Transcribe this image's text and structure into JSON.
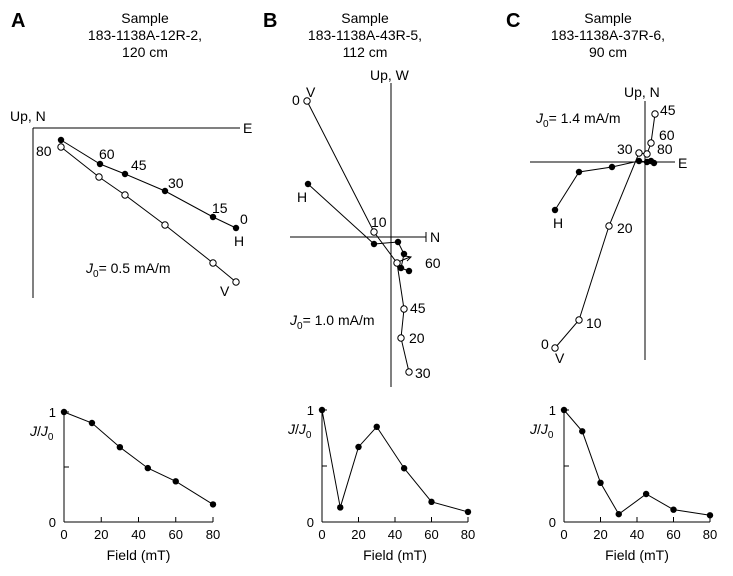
{
  "colors": {
    "ink": "#000000",
    "background": "#ffffff"
  },
  "panels": [
    {
      "letter": "A",
      "title_lines": [
        "Sample",
        "183-1138A-12R-2,",
        "120 cm"
      ],
      "zijderveld": {
        "axis_vertical_label": "Up, N",
        "axis_horizontal_label": "E",
        "intensity_label": "= 0.5 mA/m",
        "intensity_symbol": "J",
        "intensity_subscript": "0",
        "step_labels": [
          "80",
          "60",
          "45",
          "30",
          "15",
          "0"
        ],
        "horizontal_series_label": "H",
        "vertical_series_label": "V"
      }
    },
    {
      "letter": "B",
      "title_lines": [
        "Sample",
        "183-1138A-43R-5,",
        "112 cm"
      ],
      "zijderveld": {
        "axis_vertical_label": "Up, W",
        "axis_horizontal_label": "N",
        "intensity_label": "= 1.0 mA/m",
        "intensity_symbol": "J",
        "intensity_subscript": "0",
        "step_labels": [
          "10",
          "60",
          "45",
          "20",
          "30"
        ],
        "horizontal_series_label": "H",
        "vertical_series_label": "V",
        "vertical_series_label_alt": "0"
      }
    },
    {
      "letter": "C",
      "title_lines": [
        "Sample",
        "183-1138A-37R-6,",
        "90 cm"
      ],
      "zijderveld": {
        "axis_vertical_label": "Up, N",
        "axis_horizontal_label": "E",
        "intensity_label": "= 1.4 mA/m",
        "intensity_symbol": "J",
        "intensity_subscript": "0",
        "step_labels": [
          "45",
          "60",
          "30",
          "80",
          "20",
          "10",
          "0"
        ],
        "horizontal_series_label": "H",
        "vertical_series_label": "V"
      }
    }
  ],
  "chart_data": [
    {
      "type": "line",
      "panel": "A",
      "xlabel": "Field (mT)",
      "ylabel_symbol": "J",
      "ylabel_sep": "/",
      "ylabel_sub": "0",
      "xticks": [
        0,
        20,
        40,
        60,
        80
      ],
      "yticks": [
        0,
        1
      ],
      "xlim": [
        0,
        80
      ],
      "ylim": [
        0,
        1
      ],
      "x": [
        0,
        15,
        30,
        45,
        60,
        80
      ],
      "y": [
        1.0,
        0.9,
        0.68,
        0.49,
        0.37,
        0.16
      ]
    },
    {
      "type": "line",
      "panel": "B",
      "xlabel": "Field (mT)",
      "ylabel_symbol": "J",
      "ylabel_sep": "/",
      "ylabel_sub": "0",
      "xticks": [
        0,
        20,
        40,
        60,
        80
      ],
      "yticks": [
        0,
        1
      ],
      "xlim": [
        0,
        80
      ],
      "ylim": [
        0,
        1
      ],
      "x": [
        0,
        10,
        20,
        30,
        45,
        60,
        80
      ],
      "y": [
        1.0,
        0.13,
        0.67,
        0.85,
        0.48,
        0.18,
        0.09
      ]
    },
    {
      "type": "line",
      "panel": "C",
      "xlabel": "Field (mT)",
      "ylabel_symbol": "J",
      "ylabel_sep": "/",
      "ylabel_sub": "0",
      "xticks": [
        0,
        20,
        40,
        60,
        80
      ],
      "yticks": [
        0,
        1
      ],
      "xlim": [
        0,
        80
      ],
      "ylim": [
        0,
        1
      ],
      "x": [
        0,
        10,
        20,
        30,
        45,
        60,
        80
      ],
      "y": [
        1.0,
        0.81,
        0.35,
        0.07,
        0.25,
        0.11,
        0.06
      ]
    }
  ]
}
